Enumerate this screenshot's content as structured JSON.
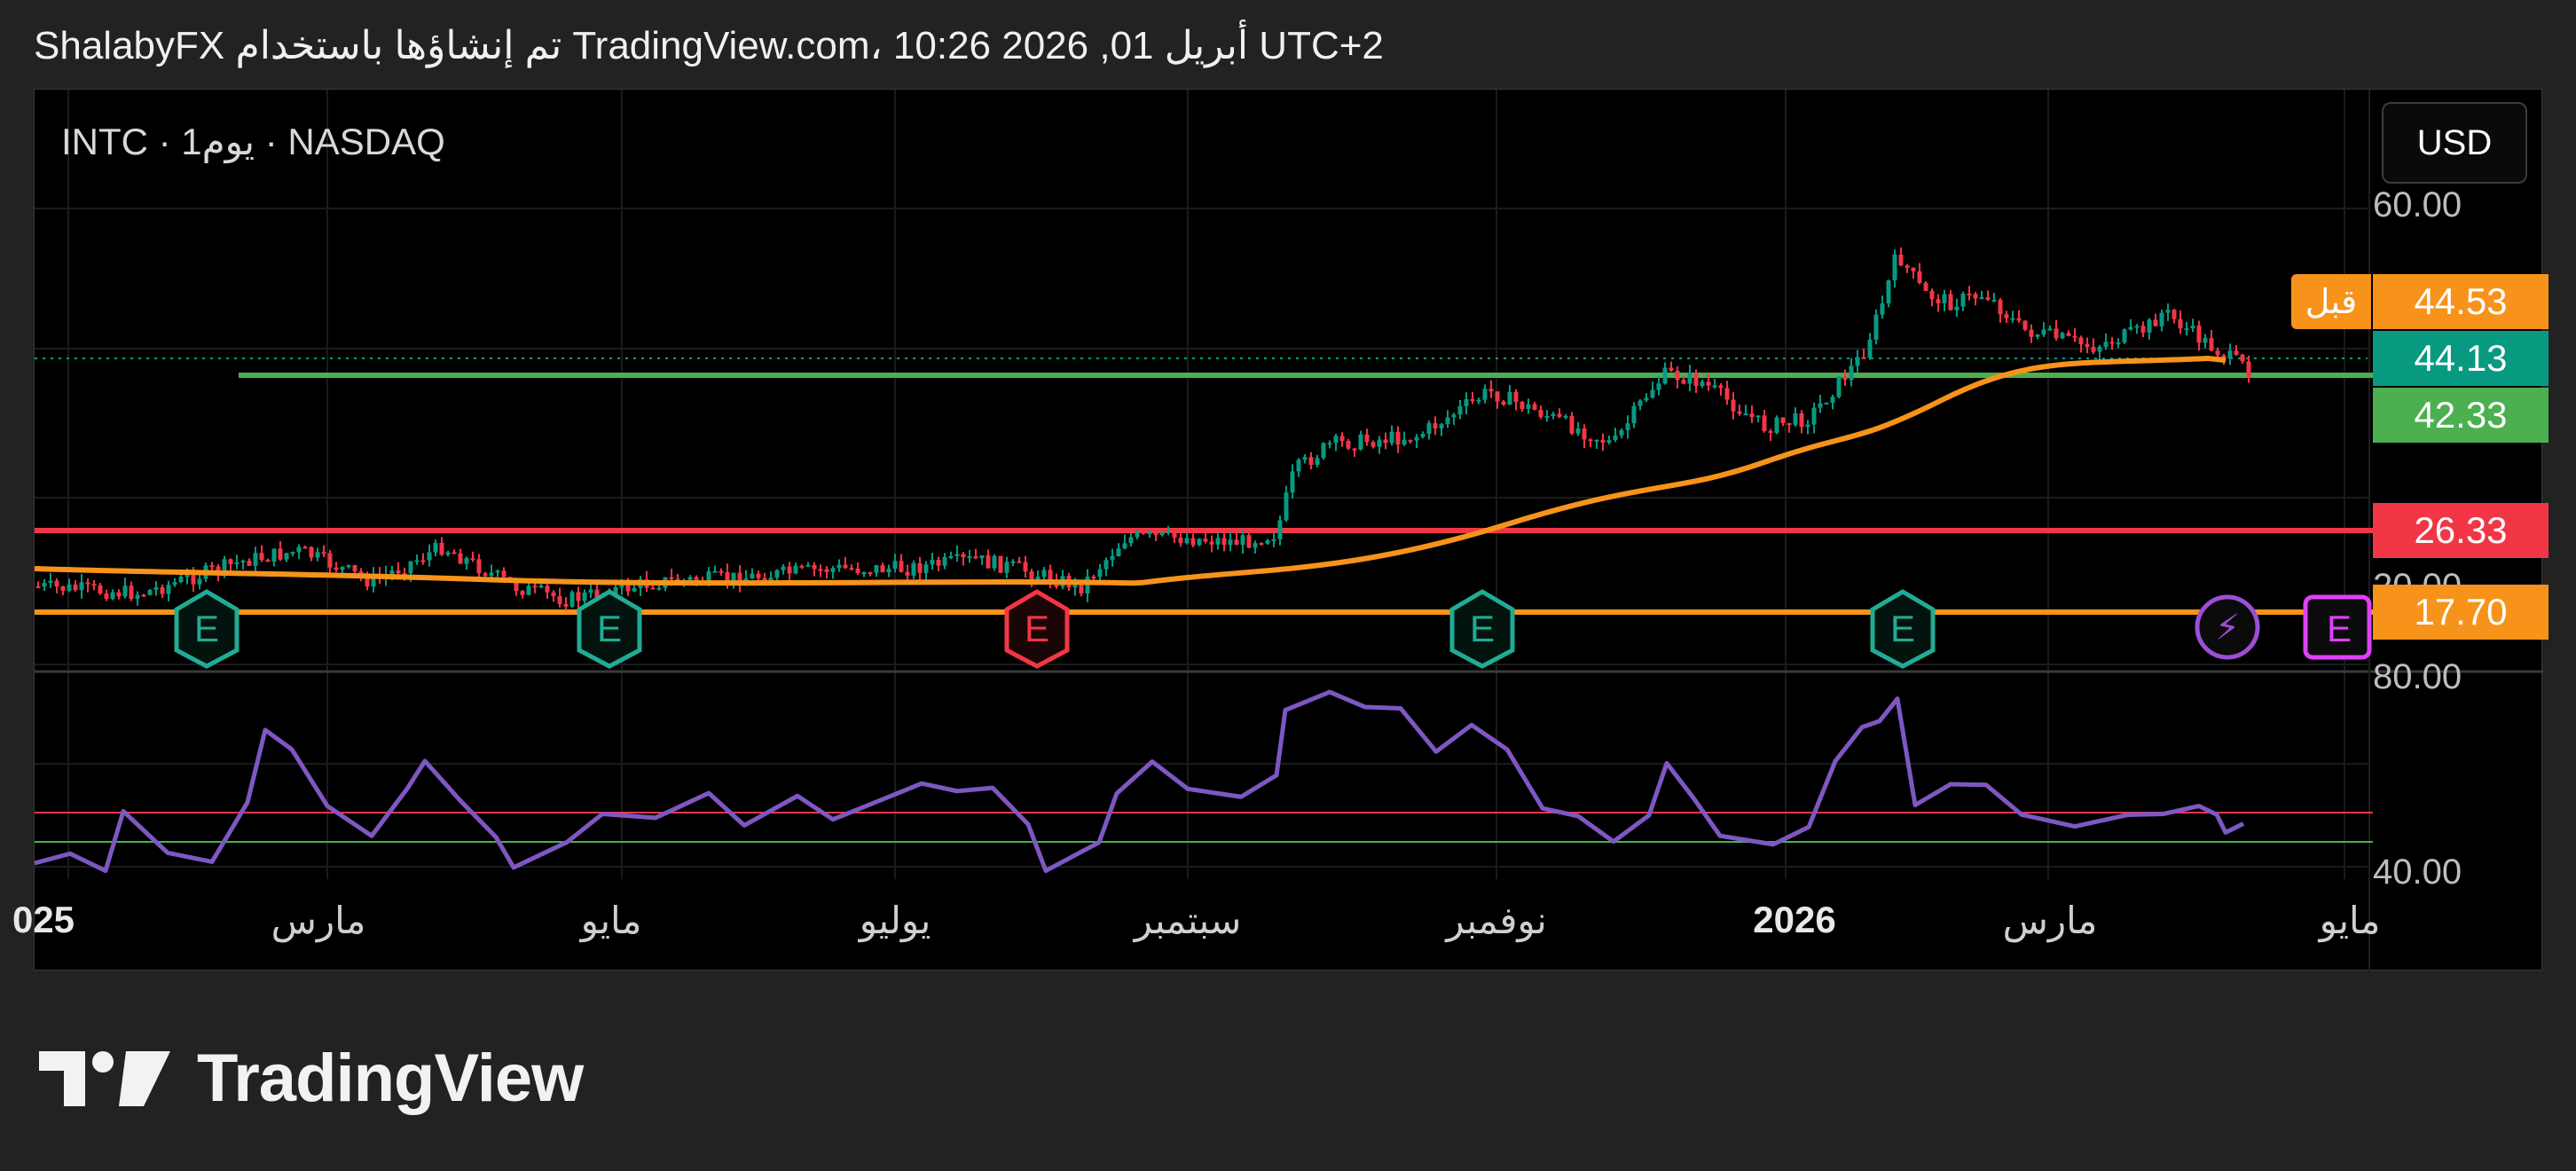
{
  "header": {
    "attribution": "‎ShalabyFX تم إنشاؤها باستخدام TradingView.com، 10:26 2026 ,01 أبريل UTC+2"
  },
  "chart": {
    "symbol_label": "INTC · 1يوم · NASDAQ",
    "currency_button": "USD",
    "pre_market_label": "قبل",
    "price_tags": [
      {
        "value": "44.53",
        "color": "#f7931a"
      },
      {
        "value": "44.13",
        "color": "#089981"
      },
      {
        "value": "42.33",
        "color": "#4caf50"
      },
      {
        "value": "26.33",
        "color": "#f23645"
      },
      {
        "value": "17.70",
        "color": "#f7931a"
      }
    ],
    "price_axis": {
      "top_label": "60.00",
      "bottom_label": "20.00"
    },
    "rsi_axis": {
      "top_label": "80.00",
      "bottom_label": "40.00"
    },
    "time_axis": [
      "025",
      "مارس",
      "مايو",
      "يوليو",
      "سبتمبر",
      "نوفمبر",
      "2026",
      "مارس",
      "مايو"
    ],
    "event_markers": [
      {
        "type": "earnings",
        "label": "E",
        "color": "#22ab94"
      },
      {
        "type": "earnings",
        "label": "E",
        "color": "#22ab94"
      },
      {
        "type": "earnings",
        "label": "E",
        "color": "#f23645"
      },
      {
        "type": "earnings",
        "label": "E",
        "color": "#22ab94"
      },
      {
        "type": "earnings",
        "label": "E",
        "color": "#22ab94"
      },
      {
        "type": "flash",
        "label": "⚡",
        "color": "#9c4fd6"
      },
      {
        "type": "upcoming-earnings",
        "label": "E",
        "color": "#e040fb"
      }
    ],
    "colors": {
      "up_candle": "#089981",
      "down_candle": "#f23645",
      "moving_average": "#f7931a",
      "rsi_line": "#7e57c2",
      "support_line": "#4caf50",
      "resistance_line": "#f23645"
    }
  },
  "footer": {
    "logo_text": "TradingView"
  }
}
